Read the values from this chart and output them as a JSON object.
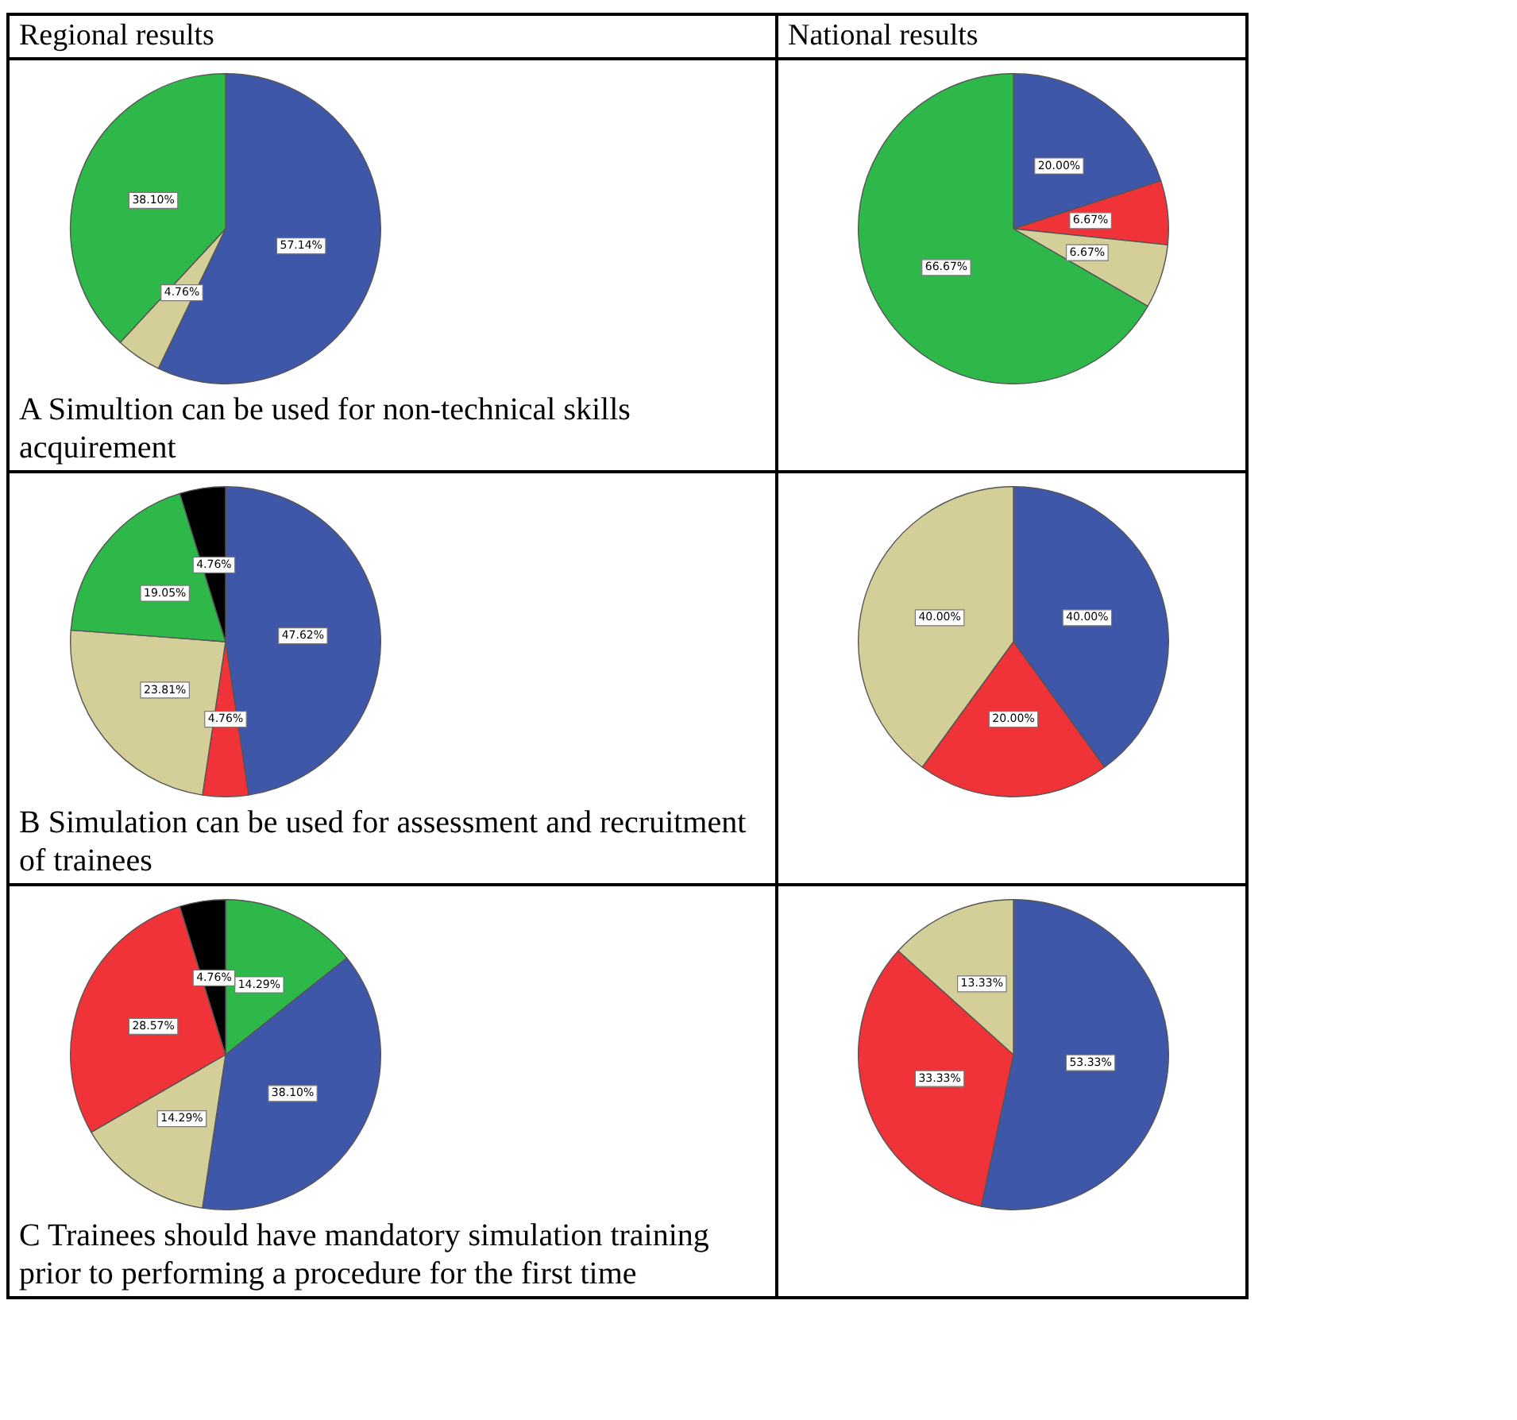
{
  "chart_data": [
    {
      "type": "pie",
      "title": "Regional results",
      "categories": [
        null,
        null,
        null
      ],
      "values": [
        57.14,
        4.76,
        38.1
      ],
      "colors": [
        "#3f57a8",
        "#d4cf98",
        "#2fb84a"
      ],
      "value_labels": [
        "57.14%",
        "4.76%",
        "38.10%"
      ],
      "annotations": [
        "A Simultion can be used for non-technical skills acquirement"
      ]
    },
    {
      "type": "pie",
      "title": "National results",
      "categories": [
        null,
        null,
        null,
        null
      ],
      "values": [
        20.0,
        6.67,
        6.67,
        66.67
      ],
      "colors": [
        "#3f57a8",
        "#ef3338",
        "#d4cf98",
        "#2fb84a"
      ],
      "value_labels": [
        "20.00%",
        "6.67%",
        "6.67%",
        "66.67%"
      ]
    },
    {
      "type": "pie",
      "categories": [
        null,
        null,
        null,
        null,
        null
      ],
      "values": [
        47.62,
        4.76,
        23.81,
        19.05,
        4.76
      ],
      "colors": [
        "#3f57a8",
        "#ef3338",
        "#d4cf98",
        "#2fb84a",
        "#000000"
      ],
      "value_labels": [
        "47.62%",
        "4.76%",
        "23.81%",
        "19.05%",
        "4.76%"
      ],
      "annotations": [
        "B Simulation can be used for assessment and recruitment of trainees"
      ]
    },
    {
      "type": "pie",
      "categories": [
        null,
        null,
        null
      ],
      "values": [
        40.0,
        20.0,
        40.0
      ],
      "colors": [
        "#3f57a8",
        "#ef3338",
        "#d4cf98"
      ],
      "value_labels": [
        "40.00%",
        "20.00%",
        "40.00%"
      ]
    },
    {
      "type": "pie",
      "categories": [
        null,
        null,
        null,
        null,
        null
      ],
      "values": [
        14.29,
        38.1,
        14.29,
        28.57,
        4.76
      ],
      "colors": [
        "#2fb84a",
        "#3f57a8",
        "#d4cf98",
        "#ef3338",
        "#000000"
      ],
      "value_labels": [
        "14.29%",
        "38.10%",
        "14.29%",
        "28.57%",
        "4.76%"
      ],
      "annotations": [
        "C Trainees should have mandatory simulation training prior to performing a procedure for the first time"
      ]
    },
    {
      "type": "pie",
      "categories": [
        null,
        null,
        null
      ],
      "values": [
        53.33,
        33.33,
        13.33
      ],
      "colors": [
        "#3f57a8",
        "#ef3338",
        "#d4cf98"
      ],
      "value_labels": [
        "53.33%",
        "33.33%",
        "13.33%"
      ]
    }
  ]
}
